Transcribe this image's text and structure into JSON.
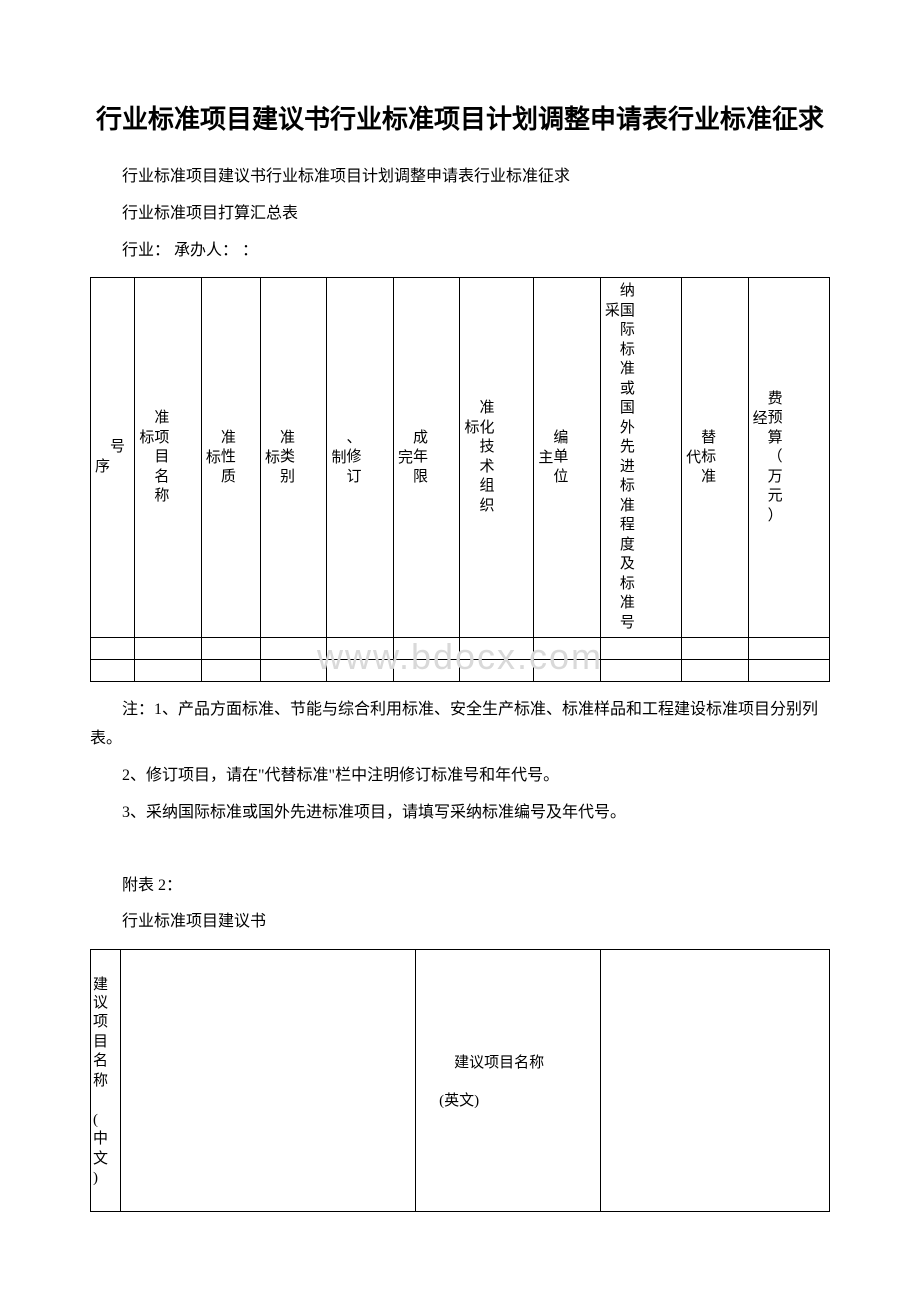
{
  "title": "行业标准项目建议书行业标准项目计划调整申请表行业标准征求",
  "paragraphs": {
    "p1": "行业标准项目建议书行业标准项目计划调整申请表行业标准征求",
    "p2": "行业标准项目打算汇总表",
    "p3": "行业：  承办人：  ："
  },
  "table1": {
    "headers": [
      {
        "prefix": "序",
        "text": "号"
      },
      {
        "prefix": "标",
        "text": "准项目名称"
      },
      {
        "prefix": "标",
        "text": "准\n性质"
      },
      {
        "prefix": "标",
        "text": "准类别"
      },
      {
        "prefix": "制",
        "text": "、修订"
      },
      {
        "prefix": "完",
        "text": "成年限"
      },
      {
        "prefix": "标",
        "text": "准化技术组织"
      },
      {
        "prefix": "主",
        "text": "编单位"
      },
      {
        "prefix": "采",
        "text": "纳国际标准或国外先进标准程度及标准号"
      },
      {
        "prefix": "代",
        "text": "替标准"
      },
      {
        "prefix": "经",
        "text": "费预算（万元）"
      }
    ],
    "col_widths": [
      "6%",
      "9%",
      "8%",
      "9%",
      "9%",
      "9%",
      "10%",
      "9%",
      "11%",
      "9%",
      "11%"
    ]
  },
  "watermark": "www.bdocx.com",
  "notes": {
    "n1": "注：1、产品方面标准、节能与综合利用标准、安全生产标准、标准样品和工程建设标准项目分别列表。",
    "n2": "2、修订项目，请在\"代替标准\"栏中注明修订标准号和年代号。",
    "n3": "3、采纳国际标准或国外先进标准项目，请填写采纳标准编号及年代号。"
  },
  "section2": {
    "attach": "附表 2：",
    "heading": "行业标准项目建议书"
  },
  "table2": {
    "r1c1_prefix": "建",
    "r1c1": "议项目名称\n  (中文)",
    "r1c3": "　　建议项目名称\n\n　(英文)"
  }
}
